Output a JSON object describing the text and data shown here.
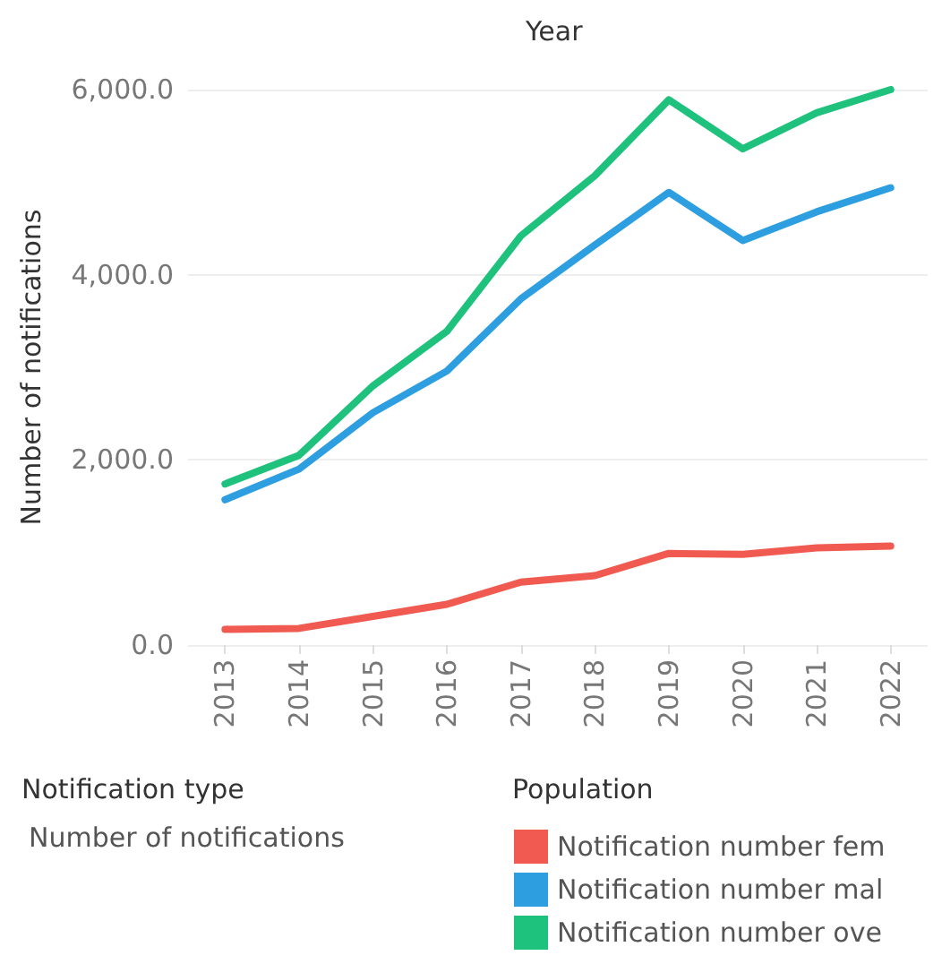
{
  "chart_data": {
    "type": "line",
    "xlabel": "Year",
    "ylabel": "Number of notifications",
    "legend_title": "Population",
    "legend": "bottom",
    "annotations": [
      "Notification type",
      "Number of notifications"
    ],
    "categories": [
      "2013",
      "2014",
      "2015",
      "2016",
      "2017",
      "2018",
      "2019",
      "2020",
      "2021",
      "2022"
    ],
    "series": [
      {
        "name": "Notification number fem",
        "color": "#f05a50",
        "values": [
          170,
          180,
          310,
          440,
          680,
          750,
          990,
          980,
          1050,
          1070
        ]
      },
      {
        "name": "Notification number mal",
        "color": "#2d9ee0",
        "values": [
          1570,
          1900,
          2510,
          2960,
          3740,
          4320,
          4890,
          4370,
          4680,
          4940
        ]
      },
      {
        "name": "Notification number ove",
        "color": "#1fc27d",
        "values": [
          1740,
          2050,
          2800,
          3390,
          4420,
          5070,
          5890,
          5360,
          5750,
          6000
        ]
      }
    ],
    "ylim": [
      0,
      6000
    ],
    "yticks": [
      {
        "value": 0,
        "label": "0.0"
      },
      {
        "value": 2000,
        "label": "2,000.0"
      },
      {
        "value": 4000,
        "label": "4,000.0"
      },
      {
        "value": 6000,
        "label": "6,000.0"
      }
    ],
    "grid": "y",
    "marker": "none",
    "line_style": "solid"
  }
}
